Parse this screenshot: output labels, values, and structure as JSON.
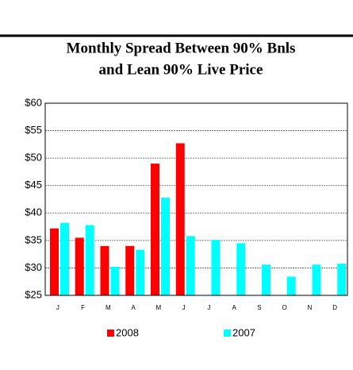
{
  "chart_data": {
    "type": "bar",
    "title": "Monthly Spread Between 90% Bnls",
    "subtitle": "and Lean 90% Live Price",
    "categories": [
      "J",
      "F",
      "M",
      "A",
      "M",
      "J",
      "J",
      "A",
      "S",
      "O",
      "N",
      "D"
    ],
    "series": [
      {
        "name": "2008",
        "color": "#ff0000",
        "values": [
          37.2,
          35.5,
          34,
          34,
          49,
          52.7,
          null,
          null,
          null,
          null,
          null,
          null
        ]
      },
      {
        "name": "2007",
        "color": "#00ffff",
        "values": [
          38.2,
          37.8,
          30.2,
          33.3,
          42.8,
          35.8,
          35.1,
          34.5,
          30.6,
          28.4,
          30.6,
          30.8
        ]
      }
    ],
    "ylim": [
      25,
      60
    ],
    "yticks": [
      {
        "value": 25,
        "label": "$25"
      },
      {
        "value": 30,
        "label": "$30"
      },
      {
        "value": 35,
        "label": "$35"
      },
      {
        "value": 40,
        "label": "$40"
      },
      {
        "value": 45,
        "label": "$45"
      },
      {
        "value": 50,
        "label": "$50"
      },
      {
        "value": 55,
        "label": "$55"
      },
      {
        "value": 60,
        "label": "$60"
      }
    ],
    "grid": true,
    "legend": "bottom"
  }
}
